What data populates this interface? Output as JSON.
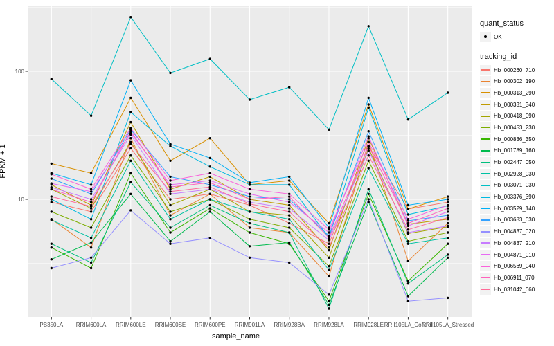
{
  "chart_data": {
    "type": "line",
    "title": "",
    "xlabel": "sample_name",
    "ylabel": "FPKM + 1",
    "yscale": "log10",
    "ytick_labels": [
      "100",
      "10"
    ],
    "yticks": [
      100,
      10
    ],
    "yminor": [
      316.2,
      31.62,
      3.162
    ],
    "grid": "on",
    "categories": [
      "PB350LA",
      "RRIM600LA",
      "RRIM600LE",
      "RRIM600SE",
      "RRIM600PE",
      "RRIM901LA",
      "RRIM928BA",
      "RRIM928LA",
      "RRIM928LE",
      "RRII105LA_Control",
      "RRII105LA_Stressed"
    ],
    "series": [
      {
        "name": "Hb_000260_710",
        "color": "#F8766D",
        "values": [
          9.5,
          8,
          25,
          10,
          11,
          9,
          6.5,
          4.5,
          26,
          8.4,
          9.5
        ]
      },
      {
        "name": "Hb_000302_190",
        "color": "#EA8331",
        "values": [
          7,
          4.2,
          30,
          7.5,
          11,
          6,
          5.5,
          2.5,
          28,
          3.3,
          6.5
        ]
      },
      {
        "name": "Hb_000313_290",
        "color": "#D89000",
        "values": [
          19,
          16,
          62,
          20,
          30,
          13,
          14,
          6.5,
          55,
          8.4,
          10.5
        ]
      },
      {
        "name": "Hb_000331_340",
        "color": "#C09B00",
        "values": [
          13,
          9,
          40,
          12,
          15,
          10,
          9,
          4,
          30,
          6.4,
          7
        ]
      },
      {
        "name": "Hb_000418_090",
        "color": "#A3A500",
        "values": [
          12,
          8.5,
          28,
          9,
          12,
          8,
          7.5,
          3.5,
          25,
          5.4,
          6.1
        ]
      },
      {
        "name": "Hb_000453_230",
        "color": "#7CAE00",
        "values": [
          8,
          6,
          22,
          8,
          10,
          7,
          6,
          3,
          20,
          4.7,
          5.5
        ]
      },
      {
        "name": "Hb_000836_350",
        "color": "#39B600",
        "values": [
          4.2,
          2.9,
          16,
          5.5,
          8.5,
          5.5,
          4.5,
          1.6,
          11,
          2.3,
          4.5
        ]
      },
      {
        "name": "Hb_001789_160",
        "color": "#00BB4E",
        "values": [
          3.4,
          4.6,
          11,
          4.7,
          8,
          4.3,
          4.6,
          1.5,
          9.5,
          1.75,
          3.5
        ]
      },
      {
        "name": "Hb_002447_050",
        "color": "#00BF7D",
        "values": [
          4.5,
          3.2,
          13.6,
          6,
          9,
          6.5,
          5.5,
          1.4,
          12,
          2.2,
          3.7
        ]
      },
      {
        "name": "Hb_002928_030",
        "color": "#00C1A3",
        "values": [
          6.9,
          5,
          20,
          7,
          10,
          8,
          7,
          2.8,
          17.5,
          4.5,
          5
        ]
      },
      {
        "name": "Hb_003071_030",
        "color": "#00BFC4",
        "values": [
          87,
          45,
          265,
          97,
          125,
          60,
          75,
          35,
          225,
          42,
          68
        ]
      },
      {
        "name": "Hb_003376_390",
        "color": "#00BAE0",
        "values": [
          10,
          7,
          48,
          26,
          18,
          13,
          13,
          5,
          52,
          7.6,
          8.9
        ]
      },
      {
        "name": "Hb_003529_140",
        "color": "#00B0F6",
        "values": [
          16,
          13,
          85,
          27,
          21,
          13.5,
          15,
          6,
          62,
          9,
          10
        ]
      },
      {
        "name": "Hb_003683_030",
        "color": "#35A2FF",
        "values": [
          14.5,
          11,
          35,
          15,
          13,
          10.5,
          10,
          5.2,
          34,
          6.8,
          7.5
        ]
      },
      {
        "name": "Hb_004837_020",
        "color": "#9590FF",
        "values": [
          2.9,
          3.5,
          8.2,
          4.5,
          5,
          3.5,
          3.2,
          1.8,
          10,
          1.6,
          1.7
        ]
      },
      {
        "name": "Hb_004837_210",
        "color": "#C77CFF",
        "values": [
          12.4,
          10,
          32,
          11,
          12,
          9.5,
          8.5,
          4.8,
          24,
          5.5,
          6.2
        ]
      },
      {
        "name": "Hb_004871_010",
        "color": "#E76BF3",
        "values": [
          13.3,
          11.5,
          33,
          13,
          14,
          11,
          9.5,
          5.5,
          31,
          6.2,
          8
        ]
      },
      {
        "name": "Hb_006569_040",
        "color": "#FA62DB",
        "values": [
          15.7,
          12,
          36,
          14,
          16,
          12,
          11,
          5.8,
          28,
          7,
          9
        ]
      },
      {
        "name": "Hb_006911_070",
        "color": "#FF62BC",
        "values": [
          12,
          9.5,
          34,
          12.5,
          13.5,
          10,
          10.5,
          5,
          26,
          6.5,
          8.5
        ]
      },
      {
        "name": "Hb_031042_060",
        "color": "#FF6A98",
        "values": [
          10.5,
          8.8,
          27,
          11.5,
          12.5,
          9.2,
          8,
          4.2,
          22,
          5.8,
          7.2
        ]
      }
    ],
    "legend": {
      "position": "right",
      "quant_status_title": "quant_status",
      "quant_status_items": [
        {
          "label": "OK",
          "symbol": "point"
        }
      ],
      "tracking_title": "tracking_id"
    },
    "colors": {
      "panel_bg": "#EBEBEB",
      "grid": "#FFFFFF",
      "axis_text": "#4D4D4D",
      "tick": "#333333",
      "point": "#000000",
      "key_bg": "#F2F2F2"
    }
  }
}
